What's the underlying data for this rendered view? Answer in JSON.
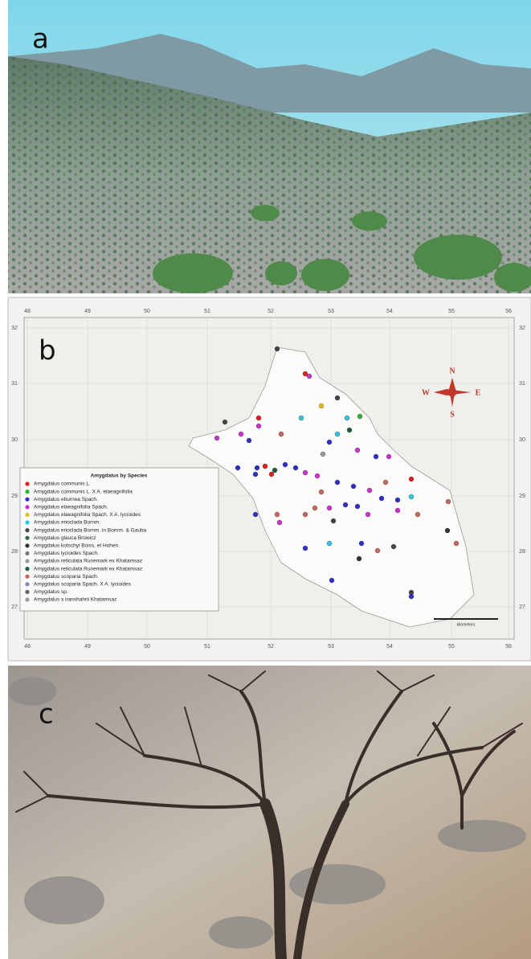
{
  "panel_a": {
    "label": "a"
  },
  "panel_b": {
    "label": "b",
    "longitudes": [
      "48",
      "49",
      "50",
      "51",
      "52",
      "53",
      "54",
      "55",
      "56"
    ],
    "latitudes": [
      "32",
      "31",
      "30",
      "29",
      "28",
      "27"
    ],
    "compass": {
      "n": "N",
      "e": "E",
      "s": "S",
      "w": "W"
    },
    "scale_bar": {
      "label": "kilometers"
    },
    "legend": {
      "title": "Amygdalus by Species",
      "entries": [
        "Amygdalus communis L.",
        "Amygdalus communis L. X A. elaeagnifolia",
        "Amygdalus eburnea Spach.",
        "Amygdalus elaeagnifolia Spach.",
        "Amygdalus elaeagnifolia Spach. X A. lycioides",
        "Amygdalus erioclada Bornm.",
        "Amygdalus erioclada Bornm. in Bornm. & Gauba",
        "Amygdalus glauca Browicz",
        "Amygdalus kotschyi Boiss. et Hohen.",
        "Amygdalus lycioides Spach.",
        "Amygdalus reticulata Runemark ex Khatamsaz",
        "Amygdalus reticulata Runemark ex Khatamsaz",
        "Amygdalus scoparia Spach.",
        "Amygdalus scoparia Spach. X A. lycioides",
        "Amygdalus sp.",
        "Amygdalus x iranshahrii Khatamsaz"
      ]
    }
  },
  "panel_c": {
    "label": "c"
  }
}
